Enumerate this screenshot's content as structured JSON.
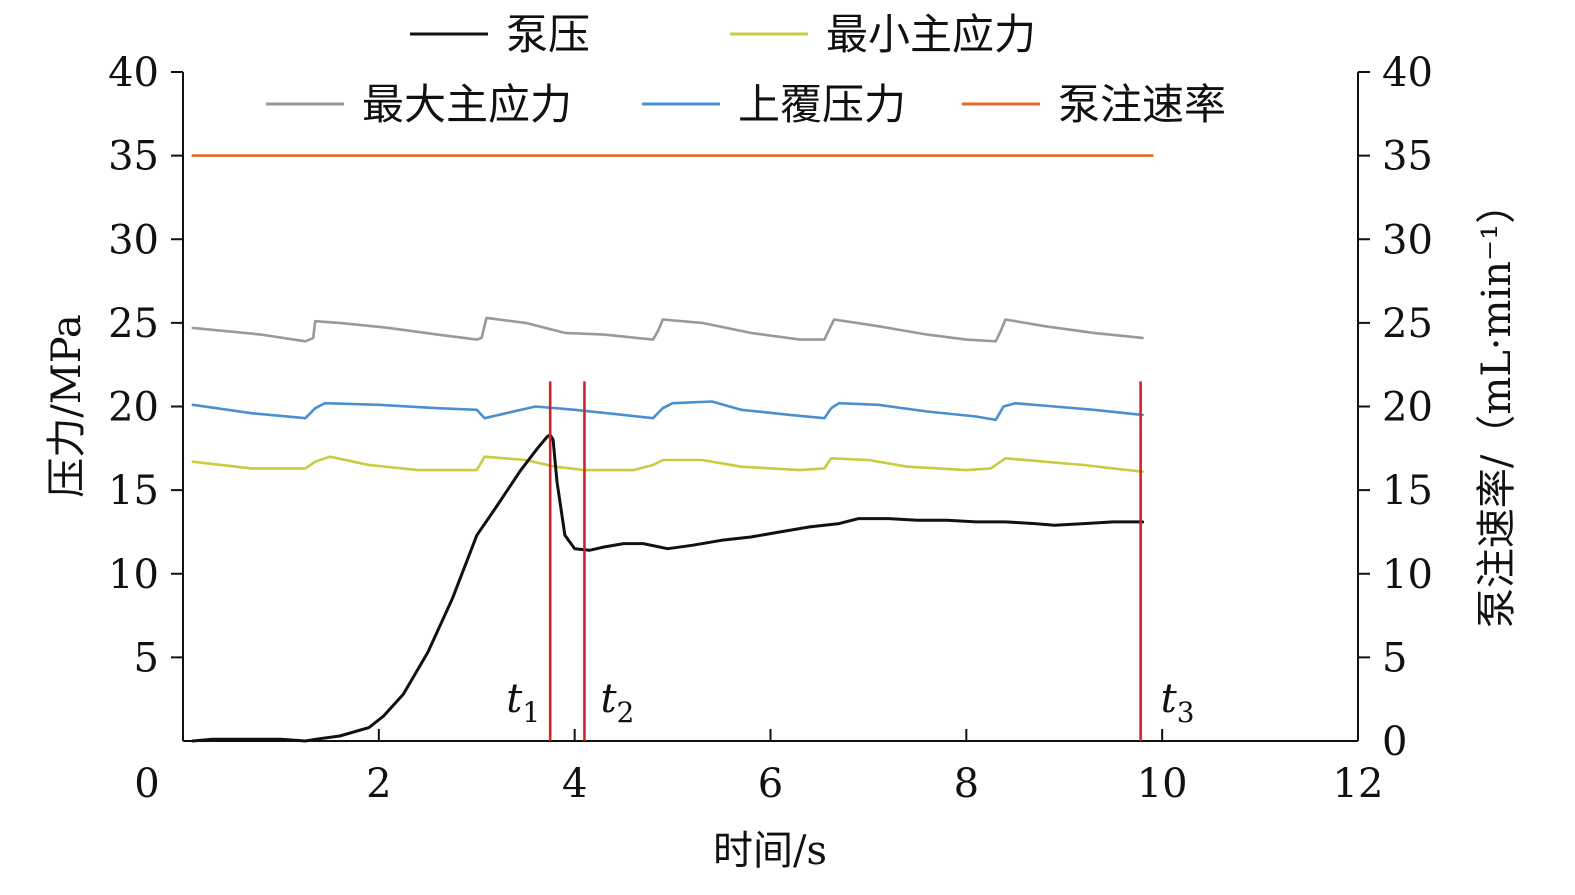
{
  "chart_data": {
    "type": "line",
    "xlabel": "时间/s",
    "ylabel_left": "压力/MPa",
    "ylabel_right": "泵注速率/（mL·min⁻¹）",
    "xlim": [
      0,
      12
    ],
    "ylim_left": [
      0,
      40
    ],
    "ylim_right": [
      0,
      40
    ],
    "x_ticks": [
      "0",
      "2",
      "4",
      "6",
      "8",
      "10",
      "12"
    ],
    "y_ticks_left": [
      "5",
      "10",
      "15",
      "20",
      "25",
      "30",
      "35",
      "40"
    ],
    "y_ticks_right": [
      "0",
      "5",
      "10",
      "15",
      "20",
      "25",
      "30",
      "35",
      "40"
    ],
    "grid": false,
    "legend_position": "top",
    "series": [
      {
        "name": "泵压",
        "color": "#111111",
        "x": [
          0.1,
          0.3,
          1.0,
          1.25,
          1.35,
          1.6,
          1.9,
          2.05,
          2.25,
          2.5,
          2.75,
          3.0,
          3.2,
          3.45,
          3.62,
          3.72,
          3.75,
          3.78,
          3.82,
          3.9,
          4.0,
          4.15,
          4.3,
          4.5,
          4.7,
          4.95,
          5.2,
          5.5,
          5.8,
          6.1,
          6.4,
          6.7,
          6.9,
          7.2,
          7.5,
          7.8,
          8.1,
          8.4,
          8.7,
          8.9,
          9.2,
          9.5,
          9.8
        ],
        "y": [
          0,
          0.1,
          0.1,
          0,
          0.1,
          0.3,
          0.8,
          1.5,
          2.8,
          5.3,
          8.5,
          12.3,
          14.0,
          16.2,
          17.5,
          18.2,
          18.3,
          18.0,
          15.5,
          12.3,
          11.5,
          11.4,
          11.6,
          11.8,
          11.8,
          11.5,
          11.7,
          12.0,
          12.2,
          12.5,
          12.8,
          13.0,
          13.3,
          13.3,
          13.2,
          13.2,
          13.1,
          13.1,
          13.0,
          12.9,
          13.0,
          13.1,
          13.1
        ]
      },
      {
        "name": "最小主应力",
        "color": "#c9cc3f",
        "x": [
          0.1,
          0.7,
          1.25,
          1.35,
          1.5,
          1.9,
          2.4,
          3.0,
          3.08,
          3.5,
          3.8,
          4.1,
          4.6,
          4.8,
          4.9,
          5.3,
          5.7,
          6.3,
          6.55,
          6.62,
          7.0,
          7.4,
          8.0,
          8.25,
          8.4,
          8.8,
          9.2,
          9.5,
          9.8
        ],
        "y": [
          16.7,
          16.3,
          16.3,
          16.7,
          17.0,
          16.5,
          16.2,
          16.2,
          17.0,
          16.8,
          16.4,
          16.2,
          16.2,
          16.5,
          16.8,
          16.8,
          16.4,
          16.2,
          16.3,
          16.9,
          16.8,
          16.4,
          16.2,
          16.3,
          16.9,
          16.7,
          16.5,
          16.3,
          16.1
        ]
      },
      {
        "name": "最大主应力",
        "color": "#999999",
        "x": [
          0.1,
          0.8,
          1.25,
          1.33,
          1.35,
          1.6,
          2.1,
          2.6,
          3.0,
          3.05,
          3.1,
          3.5,
          3.9,
          4.3,
          4.8,
          4.85,
          4.9,
          5.3,
          5.8,
          6.3,
          6.55,
          6.6,
          6.65,
          7.1,
          7.6,
          8.0,
          8.3,
          8.35,
          8.4,
          8.8,
          9.3,
          9.8
        ],
        "y": [
          24.7,
          24.3,
          23.9,
          24.1,
          25.1,
          25.0,
          24.7,
          24.3,
          24.0,
          24.1,
          25.3,
          25.0,
          24.4,
          24.3,
          24.0,
          24.5,
          25.2,
          25.0,
          24.4,
          24.0,
          24.0,
          24.6,
          25.2,
          24.8,
          24.3,
          24.0,
          23.9,
          24.5,
          25.2,
          24.8,
          24.4,
          24.1
        ]
      },
      {
        "name": "上覆压力",
        "color": "#4a90d0",
        "x": [
          0.1,
          0.7,
          1.25,
          1.35,
          1.45,
          2.0,
          2.6,
          3.0,
          3.08,
          3.3,
          3.6,
          4.0,
          4.5,
          4.8,
          4.9,
          5.0,
          5.4,
          5.7,
          6.2,
          6.55,
          6.62,
          6.7,
          7.1,
          7.6,
          8.1,
          8.3,
          8.38,
          8.5,
          8.9,
          9.3,
          9.8
        ],
        "y": [
          20.1,
          19.6,
          19.3,
          19.9,
          20.2,
          20.1,
          19.9,
          19.8,
          19.3,
          19.6,
          20.0,
          19.8,
          19.5,
          19.3,
          19.9,
          20.2,
          20.3,
          19.8,
          19.5,
          19.3,
          19.9,
          20.2,
          20.1,
          19.7,
          19.4,
          19.2,
          20.0,
          20.2,
          20.0,
          19.8,
          19.5
        ]
      },
      {
        "name": "泵注速率",
        "color": "#e06a2a",
        "axis": "right",
        "x": [
          0.1,
          9.9
        ],
        "y": [
          35,
          35
        ]
      }
    ],
    "markers": [
      {
        "label": "t",
        "sub": "1",
        "x": 3.75
      },
      {
        "label": "t",
        "sub": "2",
        "x": 4.1
      },
      {
        "label": "t",
        "sub": "3",
        "x": 9.78
      }
    ],
    "marker_color": "#d0242c",
    "marker_top": 21.5
  }
}
